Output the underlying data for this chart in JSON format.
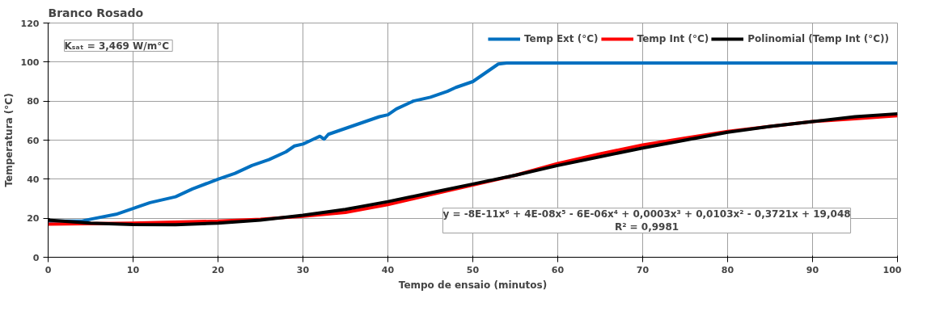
{
  "chart_data": {
    "type": "line",
    "title": "Branco Rosado",
    "xlabel": "Tempo de ensaio (minutos)",
    "ylabel": "Temperatura (°C)",
    "xlim": [
      0,
      100
    ],
    "ylim": [
      0,
      120
    ],
    "xticks": [
      0,
      10,
      20,
      30,
      40,
      50,
      60,
      70,
      80,
      90,
      100
    ],
    "yticks": [
      0,
      20,
      40,
      60,
      80,
      100,
      120
    ],
    "grid": true,
    "legend": "top",
    "line_style": "solid",
    "annotations": [
      "Kₛₐₜ = 3,469  W/m°C",
      "y = -8E-11x⁶ + 4E-08x⁵ - 6E-06x⁴ + 0,0003x³ + 0,0103x² - 0,3721x + 19,048\nR² = 0,9981"
    ],
    "series": [
      {
        "name": "Temp Ext (°C)",
        "color": "#0070c0",
        "x": [
          0,
          4,
          5,
          8,
          10,
          12,
          15,
          17,
          20,
          22,
          24,
          26,
          28,
          29,
          30,
          31,
          32,
          32.5,
          33,
          35,
          37,
          39,
          40,
          41,
          43,
          45,
          47,
          48,
          50,
          51,
          52,
          53,
          54,
          60,
          70,
          80,
          90,
          100
        ],
        "values": [
          18.5,
          18.5,
          19.5,
          22,
          25,
          28,
          31,
          35,
          40,
          43,
          47,
          50,
          54,
          57,
          58,
          60,
          62,
          60.5,
          63,
          66,
          69,
          72,
          73,
          76,
          80,
          82,
          85,
          87,
          90,
          93,
          96,
          99,
          99.5,
          99.5,
          99.5,
          99.5,
          99.5,
          99.5
        ]
      },
      {
        "name": "Temp Int (°C)",
        "color": "#ff0000",
        "x": [
          0,
          10,
          20,
          25,
          30,
          35,
          40,
          45,
          50,
          55,
          60,
          65,
          70,
          75,
          80,
          85,
          90,
          95,
          100
        ],
        "values": [
          17,
          17.5,
          18.5,
          19.5,
          21,
          23,
          27,
          32,
          37,
          42,
          48,
          53,
          57.5,
          61,
          64.5,
          67,
          69.5,
          71,
          72.5
        ]
      },
      {
        "name": "Polinomial (Temp Int (°C))",
        "color": "#000000",
        "x": [
          0,
          5,
          10,
          15,
          20,
          25,
          30,
          35,
          40,
          45,
          50,
          55,
          60,
          65,
          70,
          75,
          80,
          85,
          90,
          95,
          100
        ],
        "values": [
          19,
          17.5,
          16.8,
          16.7,
          17.5,
          19,
          21.5,
          24.5,
          28.5,
          33,
          37.5,
          42,
          47,
          51.5,
          56,
          60,
          64,
          67,
          69.5,
          72,
          73.5
        ]
      }
    ]
  }
}
